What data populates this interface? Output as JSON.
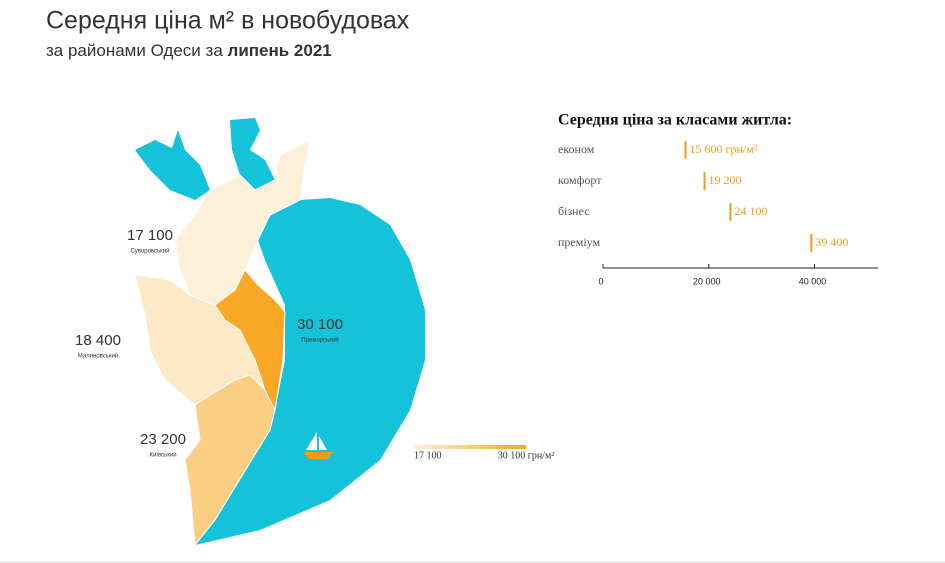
{
  "title": "Середня ціна м² в новобудовах",
  "subtitle": {
    "text": "за районами Одеси за",
    "highlight": "липень 2021"
  },
  "map": {
    "type": "choropleth",
    "regions": [
      {
        "name": "Суворовський",
        "value": 17100,
        "value_label": "17 100"
      },
      {
        "name": "Малиновський",
        "value": 18400,
        "value_label": "18 400"
      },
      {
        "name": "Київський",
        "value": 23200,
        "value_label": "23 200"
      },
      {
        "name": "Приморський",
        "value": 30100,
        "value_label": "30 100"
      }
    ],
    "water_color": "#14c2da",
    "legend": {
      "colors": [
        "#fdf0d8",
        "#f9a825"
      ],
      "ticks": [
        {
          "value": 17100,
          "label": "17 100"
        },
        {
          "value": 30100,
          "label": "30 100 грн/м²"
        }
      ]
    }
  },
  "chart_data": {
    "type": "bar",
    "orientation": "horizontal",
    "title": "Середня ціна за класами житла:",
    "categories": [
      "економ",
      "комфорт",
      "бізнес",
      "преміум"
    ],
    "values": [
      15600,
      19200,
      24100,
      39400
    ],
    "value_labels": [
      "15 600 грн/м²",
      "19 200",
      "24 100",
      "39 400"
    ],
    "color": "#f39c12",
    "xlim": [
      0,
      52000
    ],
    "xticks": [
      0,
      {
        "value": 20000,
        "label": "20 000"
      },
      {
        "value": 40000,
        "label": "40 000"
      }
    ]
  }
}
